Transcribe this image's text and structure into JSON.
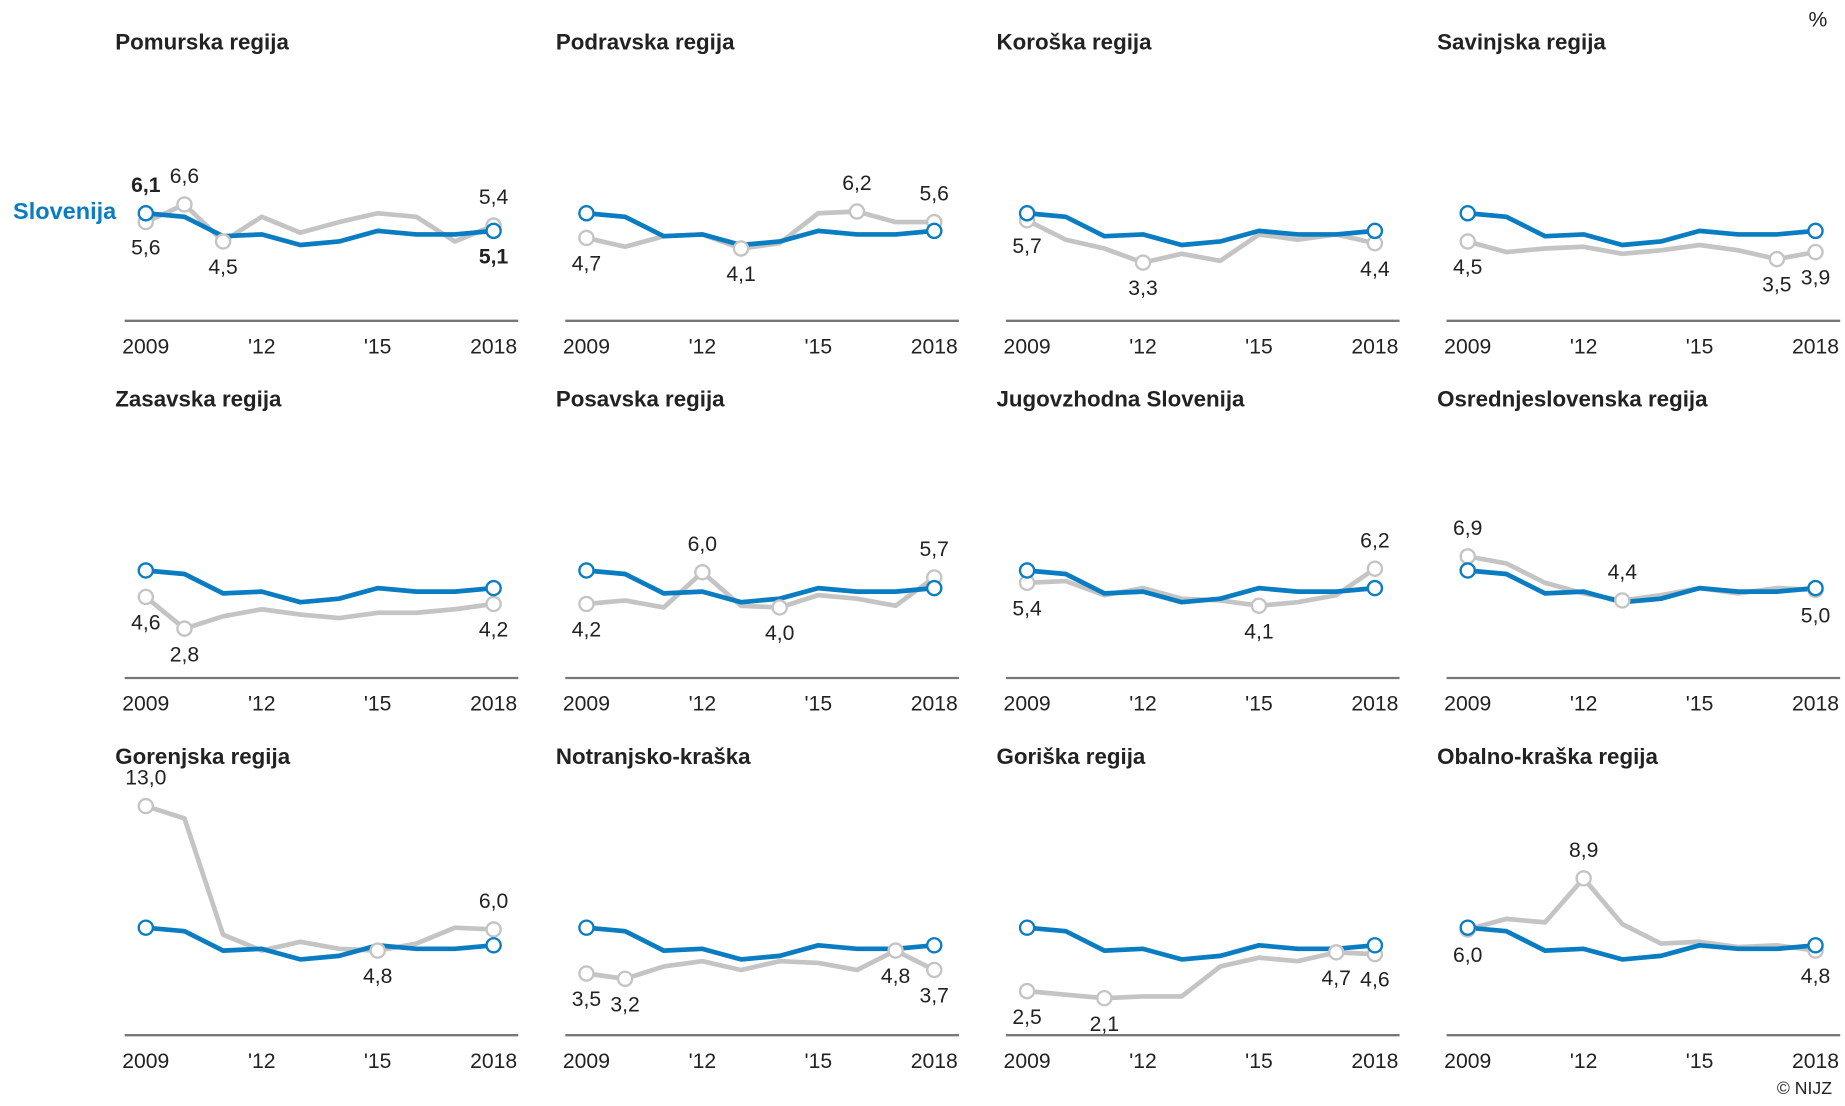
{
  "unit": "%",
  "credit": "© NIJZ",
  "chart_data": [
    {
      "type": "line",
      "title": "Pomurska regija",
      "x": [
        2009,
        2010,
        2011,
        2012,
        2013,
        2014,
        2015,
        2016,
        2017,
        2018
      ],
      "xticks": [
        2009,
        {
          "value": 2012,
          "label": "'12"
        },
        {
          "value": 2015,
          "label": "'15"
        },
        2018
      ],
      "ylim": [
        0,
        14
      ],
      "series": [
        {
          "name": "Slovenija",
          "color": "#0a7cc1",
          "values": [
            6.1,
            5.9,
            4.8,
            4.9,
            4.3,
            4.5,
            5.1,
            4.9,
            4.9,
            5.1
          ],
          "value_labels": [
            "6,1",
            null,
            null,
            null,
            null,
            null,
            null,
            null,
            null,
            "5,1"
          ]
        },
        {
          "color": "#c4c4c4",
          "values": [
            5.6,
            6.6,
            4.5,
            5.9,
            5.0,
            5.6,
            6.1,
            5.9,
            4.5,
            5.4
          ],
          "value_labels": [
            "5,6",
            "6,6",
            "4,5",
            null,
            null,
            null,
            null,
            null,
            null,
            "5,4"
          ]
        }
      ]
    },
    {
      "type": "line",
      "title": "Podravska regija",
      "x": [
        2009,
        2010,
        2011,
        2012,
        2013,
        2014,
        2015,
        2016,
        2017,
        2018
      ],
      "xticks": [
        2009,
        {
          "value": 2012,
          "label": "'12"
        },
        {
          "value": 2015,
          "label": "'15"
        },
        2018
      ],
      "ylim": [
        0,
        14
      ],
      "series": [
        {
          "color": "#0a7cc1",
          "values": [
            6.1,
            5.9,
            4.8,
            4.9,
            4.3,
            4.5,
            5.1,
            4.9,
            4.9,
            5.1
          ]
        },
        {
          "color": "#c4c4c4",
          "values": [
            4.7,
            4.2,
            4.8,
            4.9,
            4.1,
            4.4,
            6.1,
            6.2,
            5.6,
            5.6
          ],
          "value_labels": [
            "4,7",
            null,
            null,
            null,
            "4,1",
            null,
            null,
            "6,2",
            null,
            "5,6"
          ]
        }
      ]
    },
    {
      "type": "line",
      "title": "Koroška regija",
      "x": [
        2009,
        2010,
        2011,
        2012,
        2013,
        2014,
        2015,
        2016,
        2017,
        2018
      ],
      "xticks": [
        2009,
        {
          "value": 2012,
          "label": "'12"
        },
        {
          "value": 2015,
          "label": "'15"
        },
        2018
      ],
      "ylim": [
        0,
        14
      ],
      "series": [
        {
          "color": "#0a7cc1",
          "values": [
            6.1,
            5.9,
            4.8,
            4.9,
            4.3,
            4.5,
            5.1,
            4.9,
            4.9,
            5.1
          ]
        },
        {
          "color": "#c4c4c4",
          "values": [
            5.7,
            4.6,
            4.1,
            3.3,
            3.8,
            3.4,
            4.9,
            4.6,
            4.9,
            4.4
          ],
          "value_labels": [
            "5,7",
            null,
            null,
            "3,3",
            null,
            null,
            null,
            null,
            null,
            "4,4"
          ]
        }
      ]
    },
    {
      "type": "line",
      "title": "Savinjska regija",
      "x": [
        2009,
        2010,
        2011,
        2012,
        2013,
        2014,
        2015,
        2016,
        2017,
        2018
      ],
      "xticks": [
        2009,
        {
          "value": 2012,
          "label": "'12"
        },
        {
          "value": 2015,
          "label": "'15"
        },
        2018
      ],
      "ylim": [
        0,
        14
      ],
      "series": [
        {
          "color": "#0a7cc1",
          "values": [
            6.1,
            5.9,
            4.8,
            4.9,
            4.3,
            4.5,
            5.1,
            4.9,
            4.9,
            5.1
          ]
        },
        {
          "color": "#c4c4c4",
          "values": [
            4.5,
            3.9,
            4.1,
            4.2,
            3.8,
            4.0,
            4.3,
            4.0,
            3.5,
            3.9
          ],
          "value_labels": [
            "4,5",
            null,
            null,
            null,
            null,
            null,
            null,
            null,
            "3,5",
            "3,9"
          ]
        }
      ]
    },
    {
      "type": "line",
      "title": "Zasavska regija",
      "x": [
        2009,
        2010,
        2011,
        2012,
        2013,
        2014,
        2015,
        2016,
        2017,
        2018
      ],
      "xticks": [
        2009,
        {
          "value": 2012,
          "label": "'12"
        },
        {
          "value": 2015,
          "label": "'15"
        },
        2018
      ],
      "ylim": [
        0,
        14
      ],
      "series": [
        {
          "color": "#0a7cc1",
          "values": [
            6.1,
            5.9,
            4.8,
            4.9,
            4.3,
            4.5,
            5.1,
            4.9,
            4.9,
            5.1
          ]
        },
        {
          "color": "#c4c4c4",
          "values": [
            4.6,
            2.8,
            3.5,
            3.9,
            3.6,
            3.4,
            3.7,
            3.7,
            3.9,
            4.2
          ],
          "value_labels": [
            "4,6",
            "2,8",
            null,
            null,
            null,
            null,
            null,
            null,
            null,
            "4,2"
          ]
        }
      ]
    },
    {
      "type": "line",
      "title": "Posavska regija",
      "x": [
        2009,
        2010,
        2011,
        2012,
        2013,
        2014,
        2015,
        2016,
        2017,
        2018
      ],
      "xticks": [
        2009,
        {
          "value": 2012,
          "label": "'12"
        },
        {
          "value": 2015,
          "label": "'15"
        },
        2018
      ],
      "ylim": [
        0,
        14
      ],
      "series": [
        {
          "color": "#0a7cc1",
          "values": [
            6.1,
            5.9,
            4.8,
            4.9,
            4.3,
            4.5,
            5.1,
            4.9,
            4.9,
            5.1
          ]
        },
        {
          "color": "#c4c4c4",
          "values": [
            4.2,
            4.4,
            4.0,
            6.0,
            4.1,
            4.0,
            4.7,
            4.5,
            4.1,
            5.7
          ],
          "value_labels": [
            "4,2",
            null,
            null,
            "6,0",
            null,
            "4,0",
            null,
            null,
            null,
            "5,7"
          ]
        }
      ]
    },
    {
      "type": "line",
      "title": "Jugovzhodna Slovenija",
      "x": [
        2009,
        2010,
        2011,
        2012,
        2013,
        2014,
        2015,
        2016,
        2017,
        2018
      ],
      "xticks": [
        2009,
        {
          "value": 2012,
          "label": "'12"
        },
        {
          "value": 2015,
          "label": "'15"
        },
        2018
      ],
      "ylim": [
        0,
        14
      ],
      "series": [
        {
          "color": "#0a7cc1",
          "values": [
            6.1,
            5.9,
            4.8,
            4.9,
            4.3,
            4.5,
            5.1,
            4.9,
            4.9,
            5.1
          ]
        },
        {
          "color": "#c4c4c4",
          "values": [
            5.4,
            5.5,
            4.7,
            5.1,
            4.5,
            4.4,
            4.1,
            4.3,
            4.7,
            6.2
          ],
          "value_labels": [
            "5,4",
            null,
            null,
            null,
            null,
            null,
            "4,1",
            null,
            null,
            "6,2"
          ]
        }
      ]
    },
    {
      "type": "line",
      "title": "Osrednjeslovenska regija",
      "x": [
        2009,
        2010,
        2011,
        2012,
        2013,
        2014,
        2015,
        2016,
        2017,
        2018
      ],
      "xticks": [
        2009,
        {
          "value": 2012,
          "label": "'12"
        },
        {
          "value": 2015,
          "label": "'15"
        },
        2018
      ],
      "ylim": [
        0,
        14
      ],
      "series": [
        {
          "color": "#0a7cc1",
          "values": [
            6.1,
            5.9,
            4.8,
            4.9,
            4.3,
            4.5,
            5.1,
            4.9,
            4.9,
            5.1
          ]
        },
        {
          "color": "#c4c4c4",
          "values": [
            6.9,
            6.5,
            5.4,
            4.8,
            4.4,
            4.7,
            5.1,
            4.8,
            5.1,
            5.0
          ],
          "value_labels": [
            "6,9",
            null,
            null,
            null,
            "4,4",
            null,
            null,
            null,
            null,
            "5,0"
          ]
        }
      ]
    },
    {
      "type": "line",
      "title": "Gorenjska regija",
      "x": [
        2009,
        2010,
        2011,
        2012,
        2013,
        2014,
        2015,
        2016,
        2017,
        2018
      ],
      "xticks": [
        2009,
        {
          "value": 2012,
          "label": "'12"
        },
        {
          "value": 2015,
          "label": "'15"
        },
        2018
      ],
      "ylim": [
        0,
        14
      ],
      "series": [
        {
          "color": "#0a7cc1",
          "values": [
            6.1,
            5.9,
            4.8,
            4.9,
            4.3,
            4.5,
            5.1,
            4.9,
            4.9,
            5.1
          ]
        },
        {
          "color": "#c4c4c4",
          "values": [
            13.0,
            12.3,
            5.7,
            4.8,
            5.3,
            4.9,
            4.8,
            5.2,
            6.1,
            6.0
          ],
          "value_labels": [
            "13,0",
            null,
            null,
            null,
            null,
            null,
            "4,8",
            null,
            null,
            "6,0"
          ]
        }
      ]
    },
    {
      "type": "line",
      "title": "Notranjsko-kraška",
      "x": [
        2009,
        2010,
        2011,
        2012,
        2013,
        2014,
        2015,
        2016,
        2017,
        2018
      ],
      "xticks": [
        2009,
        {
          "value": 2012,
          "label": "'12"
        },
        {
          "value": 2015,
          "label": "'15"
        },
        2018
      ],
      "ylim": [
        0,
        14
      ],
      "series": [
        {
          "color": "#0a7cc1",
          "values": [
            6.1,
            5.9,
            4.8,
            4.9,
            4.3,
            4.5,
            5.1,
            4.9,
            4.9,
            5.1
          ]
        },
        {
          "color": "#c4c4c4",
          "values": [
            3.5,
            3.2,
            3.9,
            4.2,
            3.7,
            4.2,
            4.1,
            3.7,
            4.8,
            3.7
          ],
          "value_labels": [
            "3,5",
            "3,2",
            null,
            null,
            null,
            null,
            null,
            null,
            "4,8",
            "3,7"
          ]
        }
      ]
    },
    {
      "type": "line",
      "title": "Goriška regija",
      "x": [
        2009,
        2010,
        2011,
        2012,
        2013,
        2014,
        2015,
        2016,
        2017,
        2018
      ],
      "xticks": [
        2009,
        {
          "value": 2012,
          "label": "'12"
        },
        {
          "value": 2015,
          "label": "'15"
        },
        2018
      ],
      "ylim": [
        0,
        14
      ],
      "series": [
        {
          "color": "#0a7cc1",
          "values": [
            6.1,
            5.9,
            4.8,
            4.9,
            4.3,
            4.5,
            5.1,
            4.9,
            4.9,
            5.1
          ]
        },
        {
          "color": "#c4c4c4",
          "values": [
            2.5,
            2.3,
            2.1,
            2.2,
            2.2,
            3.9,
            4.4,
            4.2,
            4.7,
            4.6
          ],
          "value_labels": [
            "2,5",
            null,
            "2,1",
            null,
            null,
            null,
            null,
            null,
            "4,7",
            "4,6"
          ]
        }
      ]
    },
    {
      "type": "line",
      "title": "Obalno-kraška regija",
      "x": [
        2009,
        2010,
        2011,
        2012,
        2013,
        2014,
        2015,
        2016,
        2017,
        2018
      ],
      "xticks": [
        2009,
        {
          "value": 2012,
          "label": "'12"
        },
        {
          "value": 2015,
          "label": "'15"
        },
        2018
      ],
      "ylim": [
        0,
        14
      ],
      "series": [
        {
          "color": "#0a7cc1",
          "values": [
            6.1,
            5.9,
            4.8,
            4.9,
            4.3,
            4.5,
            5.1,
            4.9,
            4.9,
            5.1
          ]
        },
        {
          "color": "#c4c4c4",
          "values": [
            6.0,
            6.6,
            6.4,
            8.9,
            6.3,
            5.2,
            5.3,
            5.0,
            5.1,
            4.8
          ],
          "value_labels": [
            "6,0",
            null,
            null,
            "8,9",
            null,
            null,
            null,
            null,
            null,
            "4,8"
          ]
        }
      ]
    }
  ]
}
